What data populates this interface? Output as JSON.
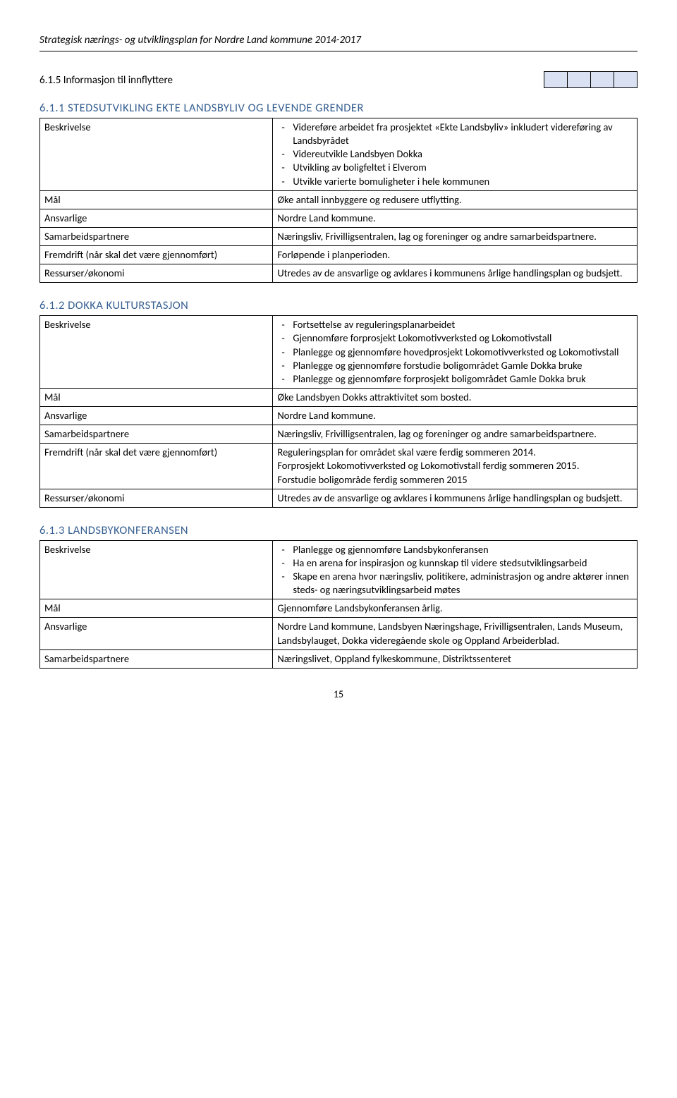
{
  "header": "Strategisk nærings- og utviklingsplan for Nordre Land kommune 2014-2017",
  "sectionTitle": "6.1.5 Informasjon til innflyttere",
  "miniGrid": {
    "bg": "#d9e1f2",
    "cells": 4
  },
  "tables": [
    {
      "heading": "6.1.1 STEDSUTVIKLING EKTE LANDSBYLIV OG LEVENDE GRENDER",
      "rows": [
        {
          "label": "Beskrivelse",
          "items": [
            "Videreføre arbeidet fra prosjektet «Ekte Landsbyliv» inkludert videreføring av Landsbyrådet",
            "Videreutvikle Landsbyen Dokka",
            "Utvikling av boligfeltet i Elverom",
            "Utvikle varierte bomuligheter i hele kommunen"
          ]
        },
        {
          "label": "Mål",
          "text": "Øke antall innbyggere og redusere utflytting."
        },
        {
          "label": "Ansvarlige",
          "text": "Nordre Land kommune."
        },
        {
          "label": "Samarbeidspartnere",
          "text": "Næringsliv, Frivilligsentralen, lag og foreninger og andre samarbeidspartnere."
        },
        {
          "label": "Fremdrift (når skal det være gjennomført)",
          "text": "Forløpende i planperioden."
        },
        {
          "label": "Ressurser/økonomi",
          "text": "Utredes av de ansvarlige og avklares i kommunens årlige handlingsplan og budsjett."
        }
      ]
    },
    {
      "heading": "6.1.2 DOKKA KULTURSTASJON",
      "rows": [
        {
          "label": "Beskrivelse",
          "items": [
            "Fortsettelse av reguleringsplanarbeidet",
            "Gjennomføre forprosjekt Lokomotivverksted og Lokomotivstall",
            "Planlegge og gjennomføre hovedprosjekt Lokomotivverksted og Lokomotivstall",
            "Planlegge og gjennomføre forstudie boligområdet Gamle Dokka bruke",
            "Planlegge og gjennomføre forprosjekt boligområdet Gamle Dokka bruk"
          ]
        },
        {
          "label": "Mål",
          "text": "Øke Landsbyen Dokks attraktivitet som bosted."
        },
        {
          "label": "Ansvarlige",
          "text": "Nordre Land kommune."
        },
        {
          "label": "Samarbeidspartnere",
          "text": "Næringsliv, Frivilligsentralen, lag og foreninger og andre samarbeidspartnere."
        },
        {
          "label": "Fremdrift (når skal det være gjennomført)",
          "text": "Reguleringsplan for området skal være ferdig sommeren 2014.\nForprosjekt Lokomotivverksted og Lokomotivstall ferdig sommeren 2015.\nForstudie boligområde ferdig sommeren 2015"
        },
        {
          "label": "Ressurser/økonomi",
          "text": "Utredes av de ansvarlige og avklares i kommunens årlige handlingsplan og budsjett."
        }
      ]
    },
    {
      "heading": "6.1.3 LANDSBYKONFERANSEN",
      "rows": [
        {
          "label": "Beskrivelse",
          "items": [
            "Planlegge og gjennomføre Landsbykonferansen",
            "Ha en arena for inspirasjon og kunnskap til videre stedsutviklingsarbeid",
            "Skape en arena hvor næringsliv, politikere, administrasjon og andre aktører innen steds- og næringsutviklingsarbeid møtes"
          ]
        },
        {
          "label": "Mål",
          "text": "Gjennomføre Landsbykonferansen årlig."
        },
        {
          "label": "Ansvarlige",
          "text": "Nordre Land kommune, Landsbyen Næringshage, Frivilligsentralen, Lands Museum, Landsbylauget, Dokka videregående skole og Oppland Arbeiderblad."
        },
        {
          "label": "Samarbeidspartnere",
          "text": "Næringslivet, Oppland fylkeskommune, Distriktssenteret"
        }
      ]
    }
  ],
  "pageNumber": "15",
  "colors": {
    "headingColor": "#365f91",
    "miniCellBg": "#d9e1f2",
    "border": "#000000",
    "text": "#000000",
    "background": "#ffffff"
  },
  "fonts": {
    "body_pt": 11,
    "heading_pt": 12
  }
}
